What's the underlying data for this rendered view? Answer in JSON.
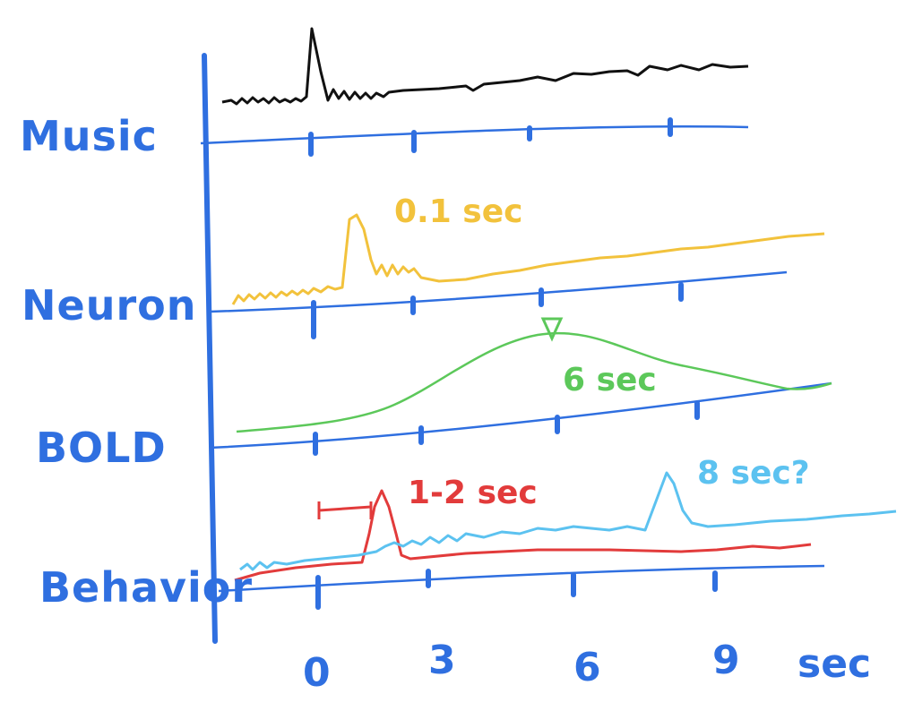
{
  "colors": {
    "axis": "#2f6fe0",
    "music": "#111111",
    "neuron": "#f2c23c",
    "bold": "#5cc85a",
    "behavior_red": "#e23b3b",
    "behavior_blue": "#5cc2f0"
  },
  "rows": {
    "music": "Music",
    "neuron": "Neuron",
    "bold": "BOLD",
    "behavior": "Behavior"
  },
  "annotations": {
    "neuron_latency": "0.1 sec",
    "bold_latency": "6 sec",
    "behavior_latency": "1-2 sec",
    "behavior_alt_latency": "8 sec?"
  },
  "time_axis": {
    "ticks": [
      "0",
      "3",
      "6",
      "9"
    ],
    "unit": "sec"
  }
}
